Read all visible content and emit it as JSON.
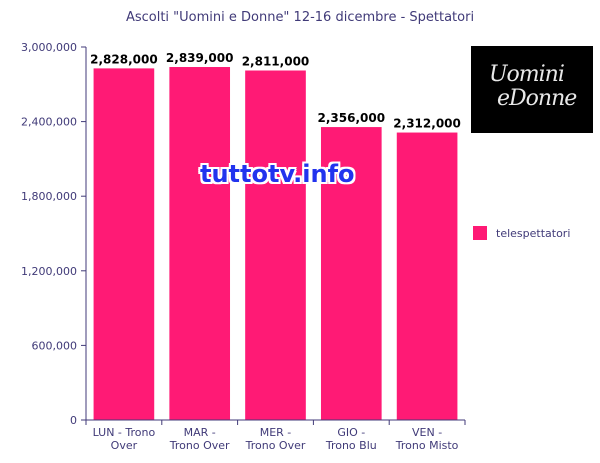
{
  "chart_data": {
    "type": "bar",
    "title": "Ascolti \"Uomini e Donne\" 12-16 dicembre - Spettatori",
    "categories": [
      [
        "LUN - Trono",
        "Over"
      ],
      [
        "MAR -",
        "Trono Over"
      ],
      [
        "MER -",
        "Trono Over"
      ],
      [
        "GIO -",
        "Trono Blu"
      ],
      [
        "VEN -",
        "Trono Misto"
      ]
    ],
    "series": [
      {
        "name": "telespettatori",
        "values": [
          2828000,
          2839000,
          2811000,
          2356000,
          2312000
        ]
      }
    ],
    "data_labels": [
      "2,828,000",
      "2,839,000",
      "2,811,000",
      "2,356,000",
      "2,312,000"
    ],
    "ylim": [
      0,
      3000000
    ],
    "yticks": [
      0,
      600000,
      1200000,
      1800000,
      2400000,
      3000000
    ],
    "ytick_labels": [
      "0",
      "600,000",
      "1,200,000",
      "1,800,000",
      "2,400,000",
      "3,000,000"
    ],
    "legend_position": "right",
    "grid": false,
    "colors": {
      "bar": "#ff1a75",
      "axis": "#403a78"
    }
  },
  "logo": {
    "line1": "Uomini",
    "line2": "eDonne"
  },
  "watermark": "tuttotv.info"
}
